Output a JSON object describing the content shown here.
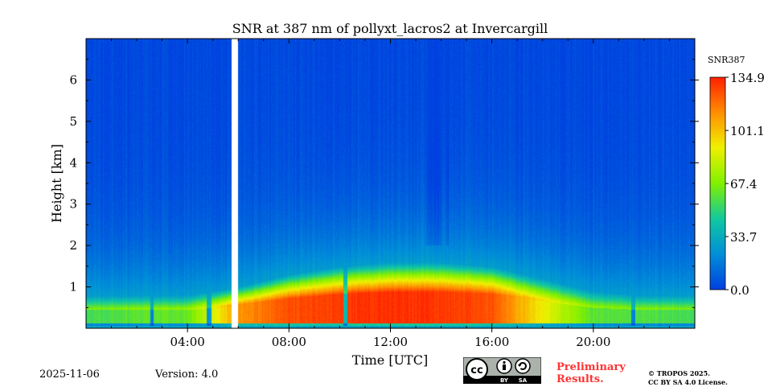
{
  "chart_data": {
    "type": "heatmap",
    "title": "SNR at 387 nm of pollyxt_lacros2 at Invercargill",
    "xlabel": "Time [UTC]",
    "ylabel": "Height [km]",
    "xlim_hours": [
      0,
      24
    ],
    "ylim_km": [
      0,
      7
    ],
    "xticks": [
      {
        "hour": 4,
        "label": "04:00"
      },
      {
        "hour": 8,
        "label": "08:00"
      },
      {
        "hour": 12,
        "label": "12:00"
      },
      {
        "hour": 16,
        "label": "16:00"
      },
      {
        "hour": 20,
        "label": "20:00"
      }
    ],
    "yticks": [
      {
        "km": 1,
        "label": "1"
      },
      {
        "km": 2,
        "label": "2"
      },
      {
        "km": 3,
        "label": "3"
      },
      {
        "km": 4,
        "label": "4"
      },
      {
        "km": 5,
        "label": "5"
      },
      {
        "km": 6,
        "label": "6"
      }
    ],
    "colorbar": {
      "label": "SNR387",
      "min": 0.0,
      "max": 134.9,
      "ticks": [
        {
          "value": 0.0,
          "label": "0.0"
        },
        {
          "value": 33.7,
          "label": "33.7"
        },
        {
          "value": 67.4,
          "label": "67.4"
        },
        {
          "value": 101.1,
          "label": "101.1"
        },
        {
          "value": 134.9,
          "label": "134.9"
        }
      ],
      "colors": [
        "#0040e0",
        "#0090d8",
        "#10c8a0",
        "#80f000",
        "#f0f000",
        "#ff9000",
        "#ff2000"
      ]
    },
    "profile": {
      "description_hours": [
        0,
        2,
        4,
        6,
        8,
        10,
        12,
        14,
        16,
        18,
        20,
        22,
        24
      ],
      "signal_top_km": [
        0.8,
        0.8,
        0.8,
        1.0,
        1.3,
        1.5,
        1.6,
        1.6,
        1.5,
        1.2,
        0.9,
        0.8,
        0.8
      ],
      "peak_snr": [
        55,
        60,
        62,
        110,
        125,
        130,
        132,
        130,
        125,
        90,
        60,
        58,
        55
      ]
    },
    "data_gaps_hours": [
      [
        5.75,
        5.98
      ]
    ],
    "low_signal_streaks_hours": [
      [
        2.55,
        2.65
      ],
      [
        4.75,
        4.95
      ],
      [
        10.15,
        10.3
      ],
      [
        21.5,
        21.65
      ]
    ],
    "cloud_columns": [
      {
        "hours": [
          13.4,
          14.0
        ],
        "base_km": 2.0,
        "top_km": 7.0
      },
      {
        "hours": [
          14.2,
          14.3
        ],
        "base_km": 2.0,
        "top_km": 7.0
      }
    ]
  },
  "footer": {
    "date": "2025-11-06",
    "version": "Version: 4.0",
    "preliminary_line1": "Preliminary",
    "preliminary_line2": "Results.",
    "copyright_line1": "© TROPOS 2025.",
    "copyright_line2": "CC BY SA 4.0 License.",
    "license_badge": {
      "cc": "cc",
      "by": "BY",
      "sa": "SA"
    }
  }
}
